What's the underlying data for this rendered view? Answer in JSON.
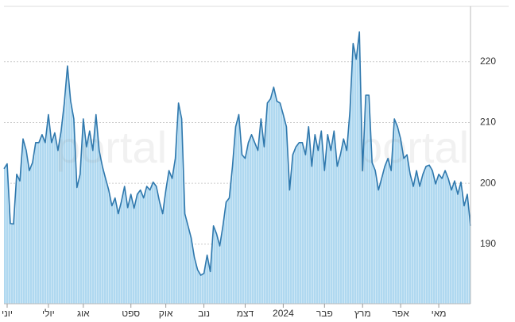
{
  "chart_data": {
    "type": "area",
    "watermark": "portal",
    "values": [
      202.4,
      203.2,
      193.4,
      193.3,
      201.5,
      200.4,
      207.3,
      205.4,
      202.1,
      203.4,
      206.7,
      206.7,
      208,
      206.7,
      211.3,
      206.7,
      208.3,
      205.4,
      208.6,
      213.2,
      219.3,
      213.5,
      210.6,
      199.3,
      201.5,
      210.6,
      206,
      208.6,
      205.4,
      211.3,
      205.4,
      202.8,
      200.8,
      198.9,
      196.3,
      197.6,
      195,
      197,
      199.5,
      196,
      198.2,
      195.9,
      198.2,
      198.9,
      197.6,
      199.5,
      198.9,
      200.2,
      199.5,
      197,
      195,
      198.9,
      202.1,
      200.8,
      204.1,
      213.2,
      210.6,
      195,
      193,
      191,
      187.8,
      185.8,
      184.9,
      185.2,
      188.2,
      185.5,
      193,
      191.7,
      189.7,
      193,
      196.9,
      197.6,
      202.8,
      209.3,
      211.3,
      204.7,
      204.1,
      206.7,
      208,
      206.7,
      205.4,
      210.6,
      206,
      213.2,
      213.9,
      215.8,
      213.5,
      213.2,
      211.3,
      209.3,
      198.9,
      204.7,
      206,
      206.7,
      206.7,
      204.7,
      209.3,
      202.8,
      208,
      205.4,
      208.6,
      202.1,
      208,
      205.4,
      208.6,
      202.8,
      204.7,
      207.3,
      205.4,
      211.9,
      223,
      220.4,
      224.9,
      202.1,
      214.5,
      214.5,
      203.4,
      202.1,
      198.9,
      200.8,
      202.8,
      204.1,
      202.1,
      210.6,
      209.3,
      207.3,
      204.1,
      204.7,
      201.5,
      199.5,
      202.1,
      199.5,
      201.5,
      202.8,
      203,
      202.1,
      199.9,
      201.5,
      200.8,
      202.1,
      200.8,
      198.9,
      200.4,
      198.2,
      200.2,
      196.3,
      198.2,
      193
    ],
    "xlim": [
      0,
      147
    ],
    "xticks": [
      {
        "value": 1,
        "label": "יוני"
      },
      {
        "value": 14,
        "label": "יולי"
      },
      {
        "value": 25,
        "label": "אוג"
      },
      {
        "value": 40,
        "label": "ספט"
      },
      {
        "value": 51,
        "label": "אוק"
      },
      {
        "value": 63,
        "label": "נוב"
      },
      {
        "value": 76,
        "label": "דצמ"
      },
      {
        "value": 88,
        "label": "2024"
      },
      {
        "value": 101,
        "label": "פבר"
      },
      {
        "value": 113,
        "label": "מרץ"
      },
      {
        "value": 125,
        "label": "אפר"
      },
      {
        "value": 137,
        "label": "מאי"
      }
    ],
    "ylim": [
      180.2,
      229.1
    ],
    "yticks": [
      190,
      200,
      210,
      220
    ],
    "grid": true,
    "line_color": "#2f78ad",
    "fill_color": "#afd8f0"
  }
}
